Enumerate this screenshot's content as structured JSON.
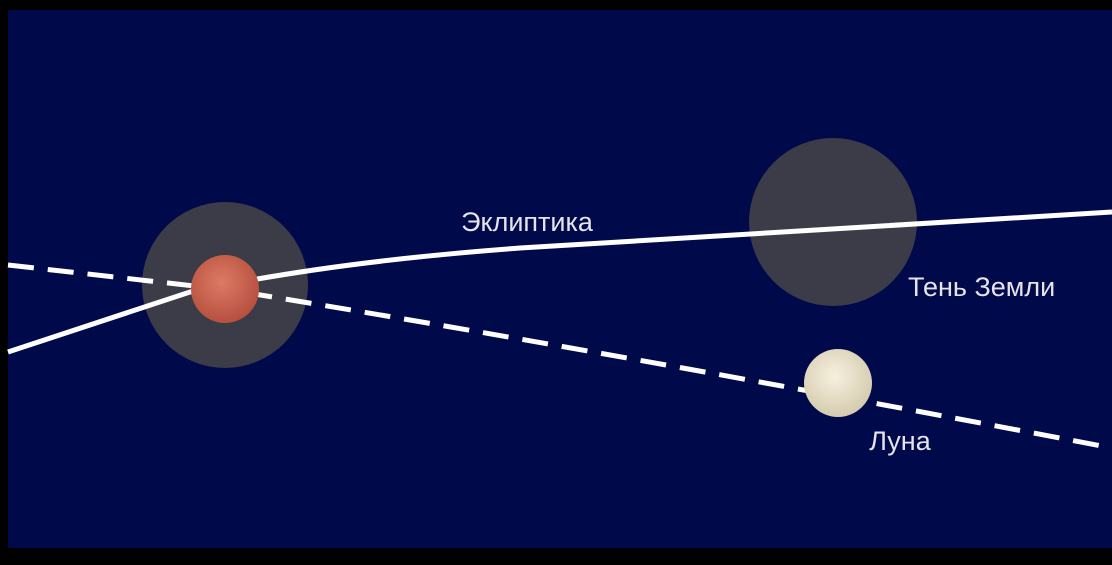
{
  "labels": {
    "ecliptic": "Эклиптика",
    "earth_shadow": "Тень Земли",
    "moon": "Луна"
  }
}
